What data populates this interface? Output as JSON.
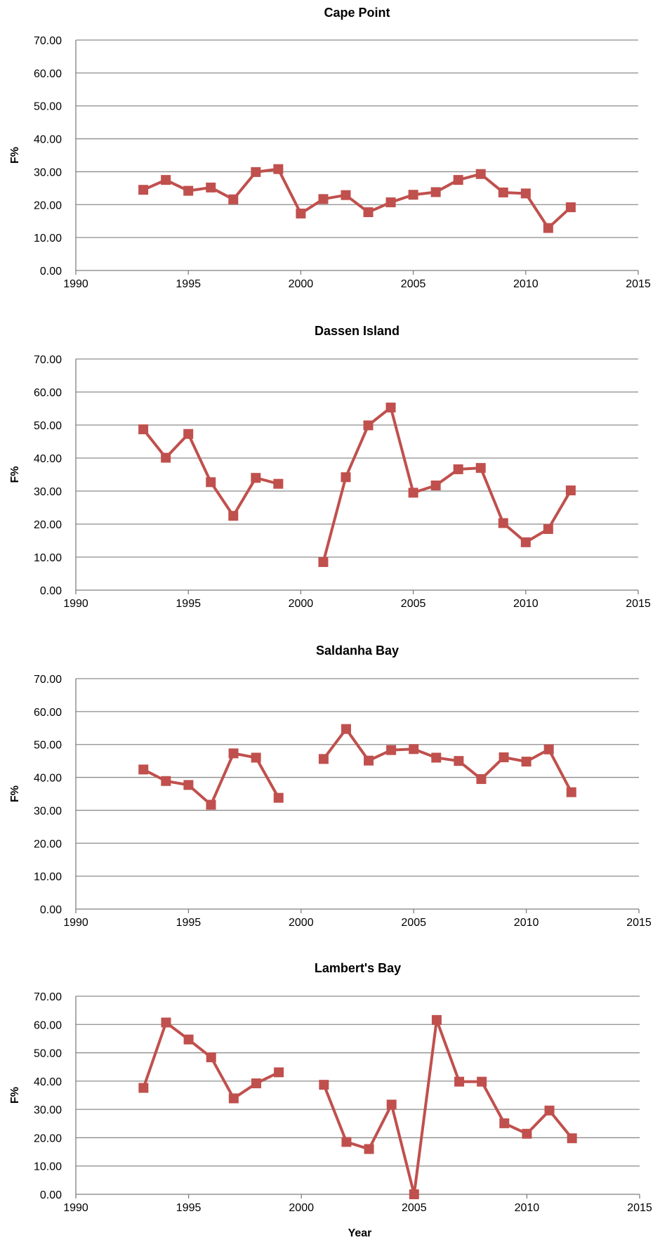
{
  "xlabel": "Year",
  "chart_data": [
    {
      "type": "line",
      "title": "Cape Point",
      "ylabel": "F%",
      "xlim": [
        1990,
        2015
      ],
      "ylim": [
        0,
        70
      ],
      "grid": true,
      "x_ticks": [
        "1990",
        "1995",
        "2000",
        "2005",
        "2010",
        "2015"
      ],
      "y_ticks": [
        "0.00",
        "10.00",
        "20.00",
        "30.00",
        "40.00",
        "50.00",
        "60.00",
        "70.00"
      ],
      "color": "#c0504d",
      "x": [
        1993,
        1994,
        1995,
        1996,
        1997,
        1998,
        1999,
        2000,
        2001,
        2002,
        2003,
        2004,
        2005,
        2006,
        2007,
        2008,
        2009,
        2010,
        2011,
        2012
      ],
      "y": [
        24.5,
        27.5,
        24.2,
        25.2,
        21.6,
        29.9,
        30.8,
        17.3,
        21.7,
        22.9,
        17.7,
        20.7,
        23.0,
        23.8,
        27.5,
        29.3,
        23.7,
        23.4,
        12.9,
        19.2
      ]
    },
    {
      "type": "line",
      "title": "Dassen Island",
      "ylabel": "F%",
      "xlim": [
        1990,
        2015
      ],
      "ylim": [
        0,
        70
      ],
      "grid": true,
      "x_ticks": [
        "1990",
        "1995",
        "2000",
        "2005",
        "2010",
        "2015"
      ],
      "y_ticks": [
        "0.00",
        "10.00",
        "20.00",
        "30.00",
        "40.00",
        "50.00",
        "60.00",
        "70.00"
      ],
      "color": "#c0504d",
      "x": [
        1993,
        1994,
        1995,
        1996,
        1997,
        1998,
        1999,
        2000,
        2001,
        2002,
        2003,
        2004,
        2005,
        2006,
        2007,
        2008,
        2009,
        2010,
        2011,
        2012
      ],
      "y": [
        48.7,
        40.1,
        47.3,
        32.7,
        22.5,
        34.0,
        32.2,
        null,
        8.5,
        34.2,
        49.9,
        55.3,
        29.5,
        31.7,
        36.6,
        37.0,
        20.3,
        14.5,
        18.5,
        30.2
      ]
    },
    {
      "type": "line",
      "title": "Saldanha Bay",
      "ylabel": "F%",
      "xlim": [
        1990,
        2015
      ],
      "ylim": [
        0,
        70
      ],
      "grid": true,
      "x_ticks": [
        "1990",
        "1995",
        "2000",
        "2005",
        "2010",
        "2015"
      ],
      "y_ticks": [
        "0.00",
        "10.00",
        "20.00",
        "30.00",
        "40.00",
        "50.00",
        "60.00",
        "70.00"
      ],
      "color": "#c0504d",
      "x": [
        1993,
        1994,
        1995,
        1996,
        1997,
        1998,
        1999,
        2000,
        2001,
        2002,
        2003,
        2004,
        2005,
        2006,
        2007,
        2008,
        2009,
        2010,
        2011,
        2012
      ],
      "y": [
        42.4,
        38.9,
        37.7,
        31.7,
        47.3,
        46.0,
        33.8,
        null,
        45.6,
        54.7,
        45.1,
        48.3,
        48.6,
        46.0,
        45.0,
        39.5,
        46.1,
        44.8,
        48.5,
        35.5
      ]
    },
    {
      "type": "line",
      "title": "Lambert's Bay",
      "ylabel": "F%",
      "xlim": [
        1990,
        2015
      ],
      "ylim": [
        0,
        70
      ],
      "grid": true,
      "x_ticks": [
        "1990",
        "1995",
        "2000",
        "2005",
        "2010",
        "2015"
      ],
      "y_ticks": [
        "0.00",
        "10.00",
        "20.00",
        "30.00",
        "40.00",
        "50.00",
        "60.00",
        "70.00"
      ],
      "color": "#c0504d",
      "x": [
        1993,
        1994,
        1995,
        1996,
        1997,
        1998,
        1999,
        2000,
        2001,
        2002,
        2003,
        2004,
        2005,
        2006,
        2007,
        2008,
        2009,
        2010,
        2011,
        2012
      ],
      "y": [
        37.6,
        60.7,
        54.7,
        48.4,
        33.9,
        39.2,
        43.1,
        null,
        38.7,
        18.5,
        16.0,
        31.7,
        0.0,
        61.6,
        39.8,
        39.8,
        25.1,
        21.4,
        29.6,
        19.8
      ]
    }
  ]
}
